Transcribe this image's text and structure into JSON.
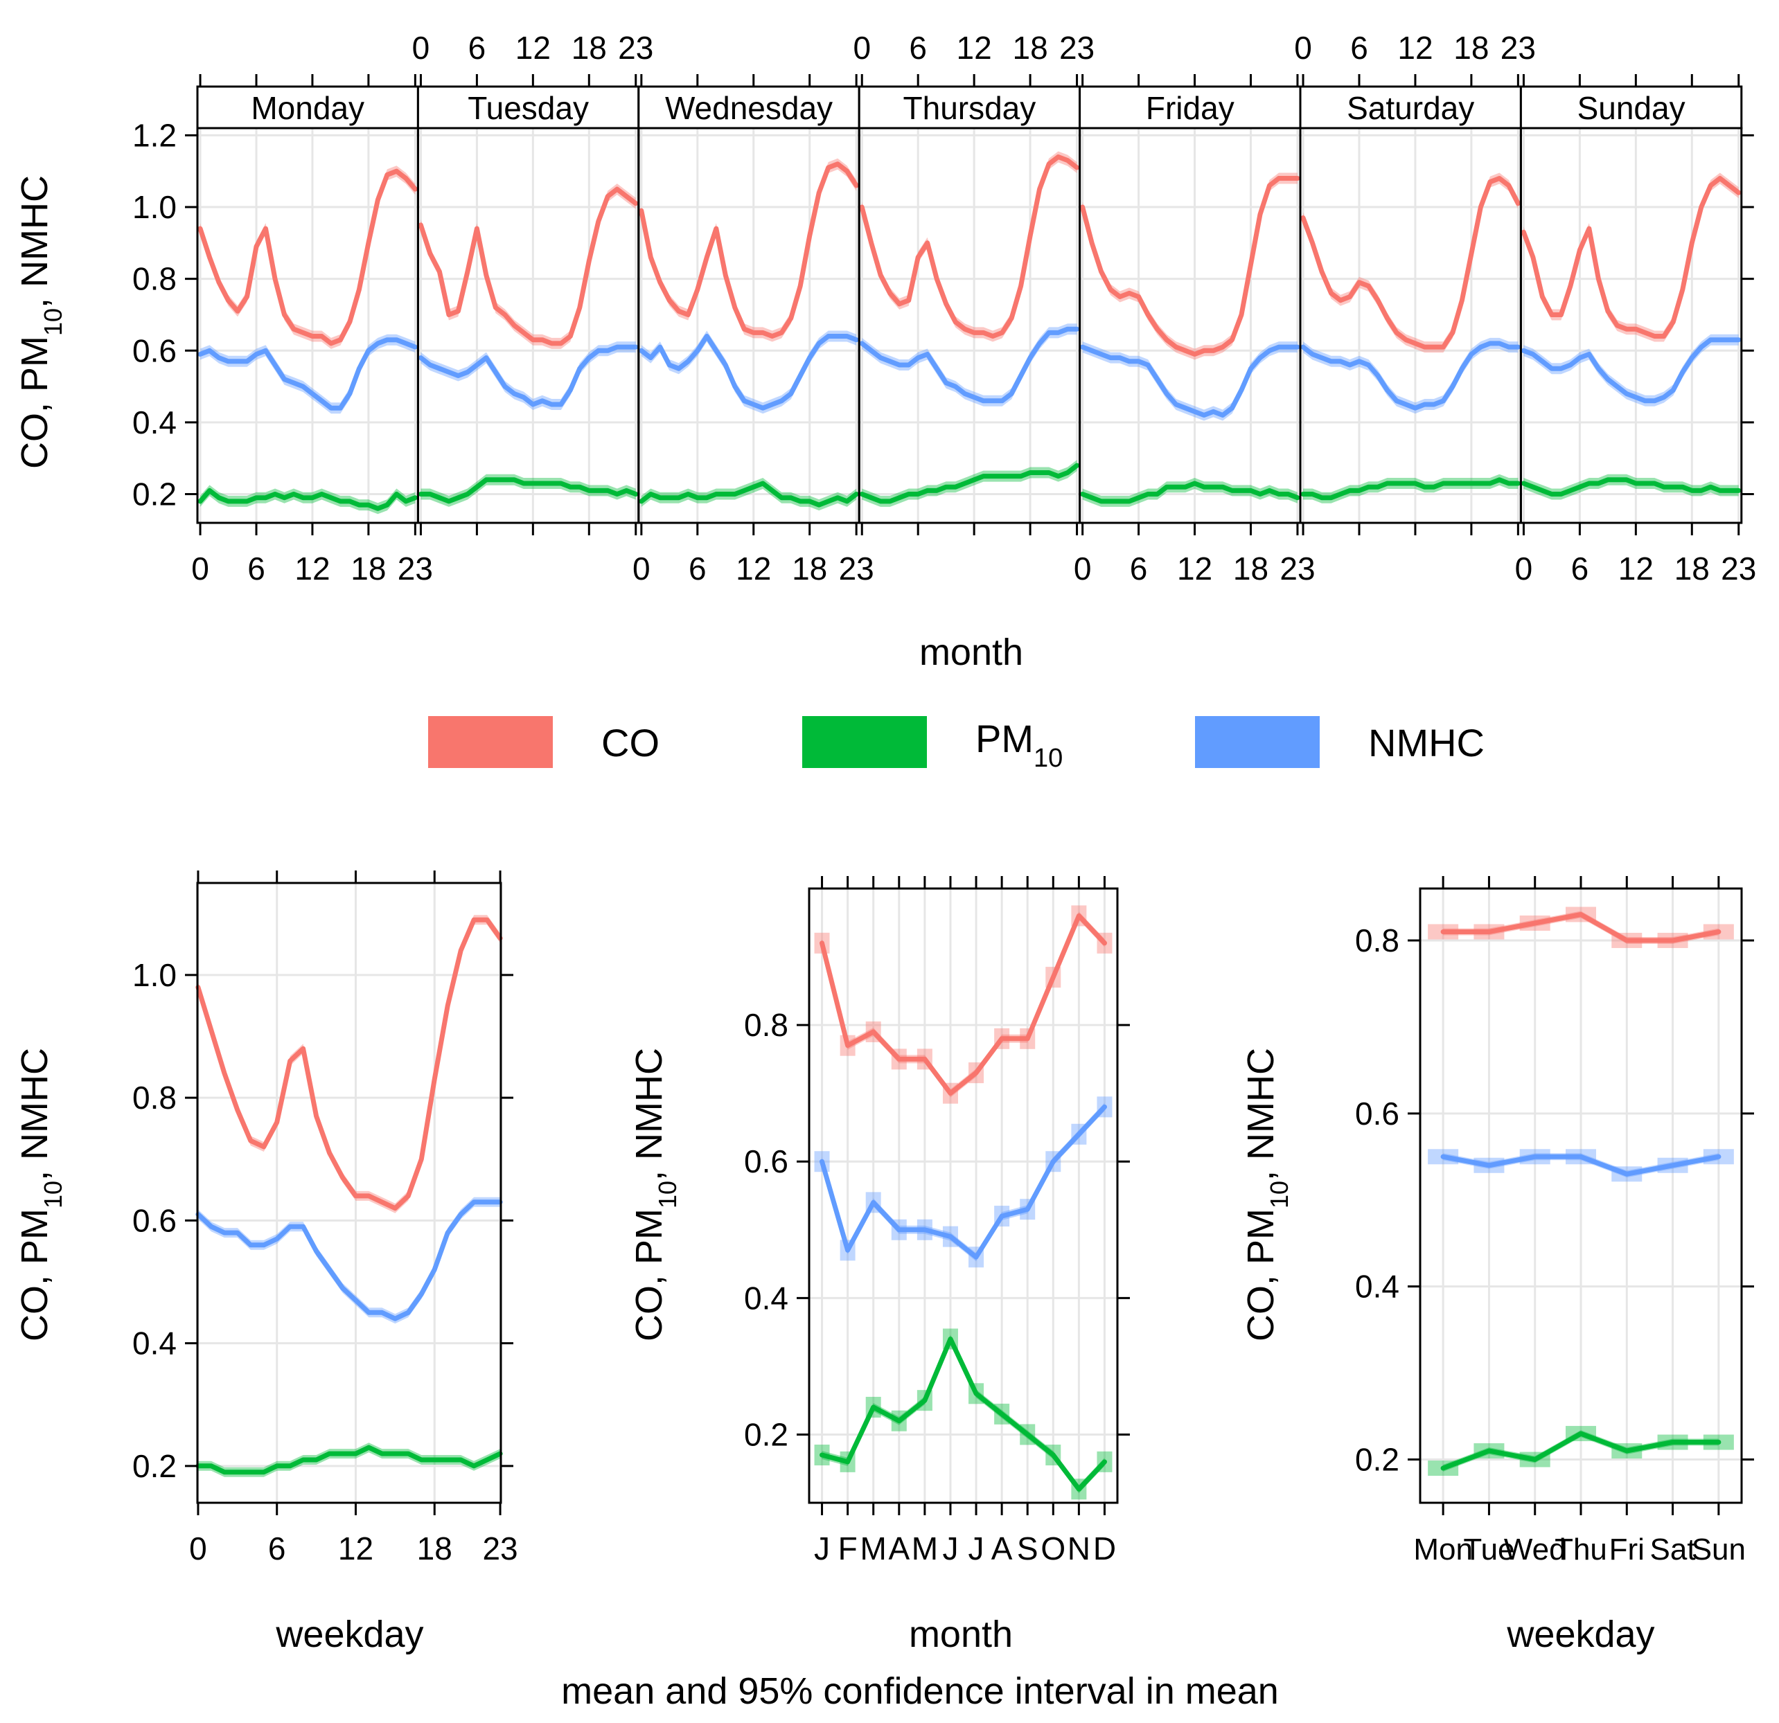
{
  "chart_data": {
    "type": "line",
    "caption": "mean and 95% confidence interval in mean",
    "legend": {
      "position": "center",
      "entries": [
        {
          "name": "CO",
          "label_main": "CO",
          "label_sub": "",
          "color": "#F8766D"
        },
        {
          "name": "PM10",
          "label_main": "PM",
          "label_sub": "10",
          "color": "#00BA38"
        },
        {
          "name": "NMHC",
          "label_main": "NMHC",
          "label_sub": "",
          "color": "#619CFF"
        }
      ]
    },
    "ylabel": {
      "a": "CO, PM",
      "sub": "10",
      "b": ", NMHC"
    },
    "top": {
      "xlabel": "month",
      "xticks": [
        "0",
        "6",
        "12",
        "18",
        "23"
      ],
      "ylim": [
        0.12,
        1.22
      ],
      "yticks": [
        "0.2",
        "0.4",
        "0.6",
        "0.8",
        "1.0",
        "1.2"
      ],
      "x": [
        0,
        1,
        2,
        3,
        4,
        5,
        6,
        7,
        8,
        9,
        10,
        11,
        12,
        13,
        14,
        15,
        16,
        17,
        18,
        19,
        20,
        21,
        22,
        23
      ],
      "panels": [
        {
          "label": "Monday",
          "CO": [
            0.94,
            0.86,
            0.79,
            0.74,
            0.71,
            0.75,
            0.89,
            0.94,
            0.8,
            0.7,
            0.66,
            0.65,
            0.64,
            0.64,
            0.62,
            0.63,
            0.68,
            0.77,
            0.9,
            1.02,
            1.09,
            1.1,
            1.08,
            1.05
          ],
          "NMHC": [
            0.59,
            0.6,
            0.58,
            0.57,
            0.57,
            0.57,
            0.59,
            0.6,
            0.56,
            0.52,
            0.51,
            0.5,
            0.48,
            0.46,
            0.44,
            0.44,
            0.48,
            0.55,
            0.6,
            0.62,
            0.63,
            0.63,
            0.62,
            0.61
          ],
          "PM10": [
            0.18,
            0.21,
            0.19,
            0.18,
            0.18,
            0.18,
            0.19,
            0.19,
            0.2,
            0.19,
            0.2,
            0.19,
            0.19,
            0.2,
            0.19,
            0.18,
            0.18,
            0.17,
            0.17,
            0.16,
            0.17,
            0.2,
            0.18,
            0.19
          ]
        },
        {
          "label": "Tuesday",
          "CO": [
            0.95,
            0.87,
            0.82,
            0.7,
            0.71,
            0.82,
            0.94,
            0.81,
            0.72,
            0.7,
            0.67,
            0.65,
            0.63,
            0.63,
            0.62,
            0.62,
            0.64,
            0.72,
            0.85,
            0.96,
            1.03,
            1.05,
            1.03,
            1.01
          ],
          "NMHC": [
            0.58,
            0.56,
            0.55,
            0.54,
            0.53,
            0.54,
            0.56,
            0.58,
            0.54,
            0.5,
            0.48,
            0.47,
            0.45,
            0.46,
            0.45,
            0.45,
            0.49,
            0.55,
            0.58,
            0.6,
            0.6,
            0.61,
            0.61,
            0.61
          ],
          "PM10": [
            0.2,
            0.2,
            0.19,
            0.18,
            0.19,
            0.2,
            0.22,
            0.24,
            0.24,
            0.24,
            0.24,
            0.23,
            0.23,
            0.23,
            0.23,
            0.23,
            0.22,
            0.22,
            0.21,
            0.21,
            0.21,
            0.2,
            0.21,
            0.2
          ]
        },
        {
          "label": "Wednesday",
          "CO": [
            0.99,
            0.86,
            0.79,
            0.74,
            0.71,
            0.7,
            0.77,
            0.86,
            0.94,
            0.81,
            0.72,
            0.66,
            0.65,
            0.65,
            0.64,
            0.65,
            0.69,
            0.78,
            0.92,
            1.04,
            1.11,
            1.12,
            1.1,
            1.06
          ],
          "NMHC": [
            0.6,
            0.58,
            0.61,
            0.56,
            0.55,
            0.57,
            0.6,
            0.64,
            0.6,
            0.56,
            0.5,
            0.46,
            0.45,
            0.44,
            0.45,
            0.46,
            0.48,
            0.53,
            0.58,
            0.62,
            0.64,
            0.64,
            0.64,
            0.63
          ],
          "PM10": [
            0.18,
            0.2,
            0.19,
            0.19,
            0.19,
            0.2,
            0.19,
            0.19,
            0.2,
            0.2,
            0.2,
            0.21,
            0.22,
            0.23,
            0.21,
            0.19,
            0.19,
            0.18,
            0.18,
            0.17,
            0.18,
            0.19,
            0.18,
            0.2
          ]
        },
        {
          "label": "Thursday",
          "CO": [
            1.0,
            0.9,
            0.81,
            0.76,
            0.73,
            0.74,
            0.86,
            0.9,
            0.8,
            0.73,
            0.68,
            0.66,
            0.65,
            0.65,
            0.64,
            0.65,
            0.69,
            0.78,
            0.92,
            1.05,
            1.12,
            1.14,
            1.13,
            1.11
          ],
          "NMHC": [
            0.62,
            0.6,
            0.58,
            0.57,
            0.56,
            0.56,
            0.58,
            0.59,
            0.55,
            0.51,
            0.5,
            0.48,
            0.47,
            0.46,
            0.46,
            0.46,
            0.48,
            0.53,
            0.58,
            0.62,
            0.65,
            0.65,
            0.66,
            0.66
          ],
          "PM10": [
            0.2,
            0.19,
            0.18,
            0.18,
            0.19,
            0.2,
            0.2,
            0.21,
            0.21,
            0.22,
            0.22,
            0.23,
            0.24,
            0.25,
            0.25,
            0.25,
            0.25,
            0.25,
            0.26,
            0.26,
            0.26,
            0.25,
            0.26,
            0.28
          ]
        },
        {
          "label": "Friday",
          "CO": [
            1.0,
            0.9,
            0.82,
            0.77,
            0.75,
            0.76,
            0.75,
            0.7,
            0.66,
            0.63,
            0.61,
            0.6,
            0.59,
            0.6,
            0.6,
            0.61,
            0.63,
            0.7,
            0.84,
            0.98,
            1.06,
            1.08,
            1.08,
            1.08
          ],
          "NMHC": [
            0.61,
            0.6,
            0.59,
            0.58,
            0.58,
            0.57,
            0.57,
            0.56,
            0.52,
            0.48,
            0.45,
            0.44,
            0.43,
            0.42,
            0.43,
            0.42,
            0.44,
            0.49,
            0.55,
            0.58,
            0.6,
            0.61,
            0.61,
            0.61
          ],
          "PM10": [
            0.2,
            0.19,
            0.18,
            0.18,
            0.18,
            0.18,
            0.19,
            0.2,
            0.2,
            0.22,
            0.22,
            0.22,
            0.23,
            0.22,
            0.22,
            0.22,
            0.21,
            0.21,
            0.21,
            0.2,
            0.21,
            0.2,
            0.2,
            0.19
          ]
        },
        {
          "label": "Saturday",
          "CO": [
            0.97,
            0.9,
            0.82,
            0.76,
            0.74,
            0.75,
            0.79,
            0.78,
            0.74,
            0.69,
            0.65,
            0.63,
            0.62,
            0.61,
            0.61,
            0.61,
            0.65,
            0.74,
            0.87,
            1.0,
            1.07,
            1.08,
            1.06,
            1.01
          ],
          "NMHC": [
            0.61,
            0.59,
            0.58,
            0.57,
            0.57,
            0.56,
            0.57,
            0.56,
            0.53,
            0.49,
            0.46,
            0.45,
            0.44,
            0.45,
            0.45,
            0.46,
            0.5,
            0.55,
            0.59,
            0.61,
            0.62,
            0.62,
            0.61,
            0.61
          ],
          "PM10": [
            0.2,
            0.2,
            0.19,
            0.19,
            0.2,
            0.21,
            0.21,
            0.22,
            0.22,
            0.23,
            0.23,
            0.23,
            0.23,
            0.22,
            0.22,
            0.23,
            0.23,
            0.23,
            0.23,
            0.23,
            0.23,
            0.24,
            0.23,
            0.23
          ]
        },
        {
          "label": "Sunday",
          "CO": [
            0.93,
            0.86,
            0.75,
            0.7,
            0.7,
            0.78,
            0.88,
            0.94,
            0.8,
            0.71,
            0.67,
            0.66,
            0.66,
            0.65,
            0.64,
            0.64,
            0.68,
            0.77,
            0.9,
            1.0,
            1.06,
            1.08,
            1.06,
            1.04
          ],
          "NMHC": [
            0.6,
            0.59,
            0.57,
            0.55,
            0.55,
            0.56,
            0.58,
            0.59,
            0.55,
            0.52,
            0.5,
            0.48,
            0.47,
            0.46,
            0.46,
            0.47,
            0.49,
            0.54,
            0.58,
            0.61,
            0.63,
            0.63,
            0.63,
            0.63
          ],
          "PM10": [
            0.23,
            0.22,
            0.21,
            0.2,
            0.2,
            0.21,
            0.22,
            0.23,
            0.23,
            0.24,
            0.24,
            0.24,
            0.23,
            0.23,
            0.23,
            0.22,
            0.22,
            0.22,
            0.21,
            0.21,
            0.22,
            0.21,
            0.21,
            0.21
          ]
        }
      ]
    },
    "hour": {
      "xlabel": "weekday",
      "xticks": [
        "0",
        "6",
        "12",
        "18",
        "23"
      ],
      "ylim": [
        0.14,
        1.15
      ],
      "yticks": [
        "0.2",
        "0.4",
        "0.6",
        "0.8",
        "1.0"
      ],
      "x": [
        0,
        1,
        2,
        3,
        4,
        5,
        6,
        7,
        8,
        9,
        10,
        11,
        12,
        13,
        14,
        15,
        16,
        17,
        18,
        19,
        20,
        21,
        22,
        23
      ],
      "CO": [
        0.98,
        0.91,
        0.84,
        0.78,
        0.73,
        0.72,
        0.76,
        0.86,
        0.88,
        0.77,
        0.71,
        0.67,
        0.64,
        0.64,
        0.63,
        0.62,
        0.64,
        0.7,
        0.83,
        0.95,
        1.04,
        1.09,
        1.09,
        1.06
      ],
      "NMHC": [
        0.61,
        0.59,
        0.58,
        0.58,
        0.56,
        0.56,
        0.57,
        0.59,
        0.59,
        0.55,
        0.52,
        0.49,
        0.47,
        0.45,
        0.45,
        0.44,
        0.45,
        0.48,
        0.52,
        0.58,
        0.61,
        0.63,
        0.63,
        0.63
      ],
      "PM10": [
        0.2,
        0.2,
        0.19,
        0.19,
        0.19,
        0.19,
        0.2,
        0.2,
        0.21,
        0.21,
        0.22,
        0.22,
        0.22,
        0.23,
        0.22,
        0.22,
        0.22,
        0.21,
        0.21,
        0.21,
        0.21,
        0.2,
        0.21,
        0.22
      ]
    },
    "month": {
      "xlabel": "month",
      "categories": [
        "J",
        "F",
        "M",
        "A",
        "M",
        "J",
        "J",
        "A",
        "S",
        "O",
        "N",
        "D"
      ],
      "ylim": [
        0.1,
        1.0
      ],
      "yticks": [
        "0.2",
        "0.4",
        "0.6",
        "0.8"
      ],
      "CO": [
        0.92,
        0.77,
        0.79,
        0.75,
        0.75,
        0.7,
        0.73,
        0.78,
        0.78,
        0.87,
        0.96,
        0.92
      ],
      "NMHC": [
        0.6,
        0.47,
        0.54,
        0.5,
        0.5,
        0.49,
        0.46,
        0.52,
        0.53,
        0.6,
        0.64,
        0.68
      ],
      "PM10": [
        0.17,
        0.16,
        0.24,
        0.22,
        0.25,
        0.34,
        0.26,
        0.23,
        0.2,
        0.17,
        0.12,
        0.16
      ]
    },
    "weekday": {
      "xlabel": "weekday",
      "categories": [
        "Mon",
        "Tue",
        "Wed",
        "Thu",
        "Fri",
        "Sat",
        "Sun"
      ],
      "ylim": [
        0.15,
        0.86
      ],
      "yticks": [
        "0.2",
        "0.4",
        "0.6",
        "0.8"
      ],
      "CO": [
        0.81,
        0.81,
        0.82,
        0.83,
        0.8,
        0.8,
        0.81
      ],
      "NMHC": [
        0.55,
        0.54,
        0.55,
        0.55,
        0.53,
        0.54,
        0.55
      ],
      "PM10": [
        0.19,
        0.21,
        0.2,
        0.23,
        0.21,
        0.22,
        0.22
      ]
    }
  }
}
